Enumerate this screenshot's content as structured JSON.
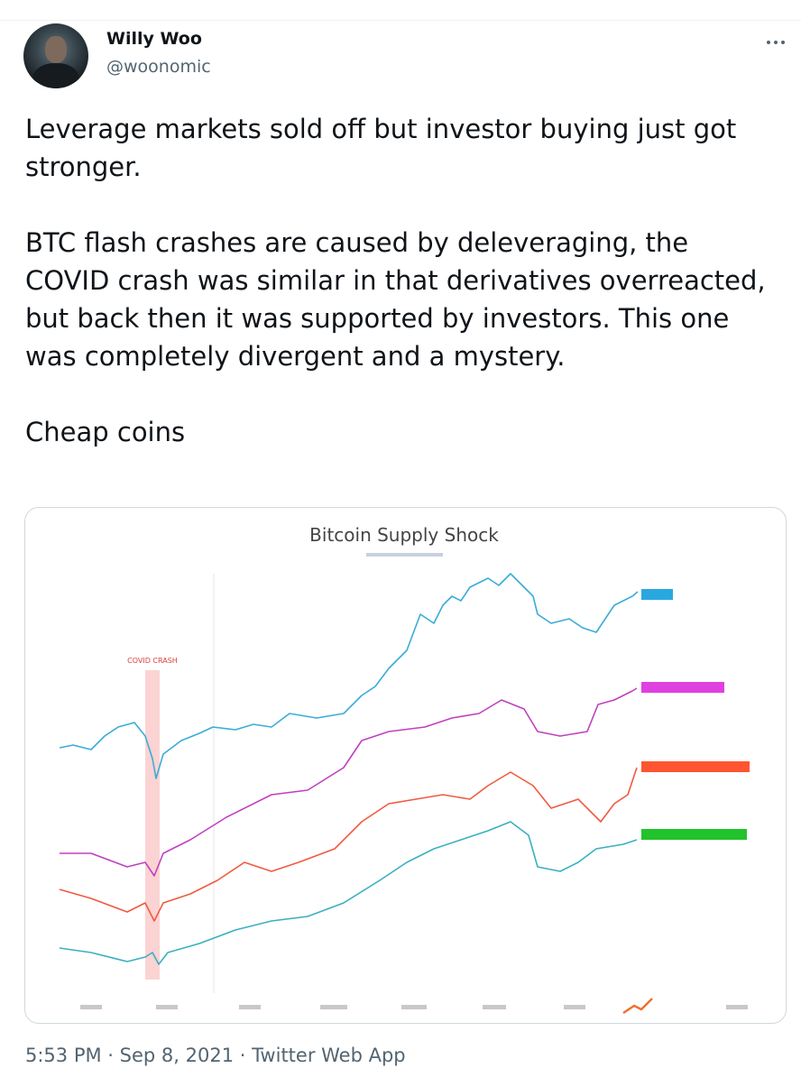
{
  "tweet": {
    "author": {
      "name": "Willy Woo",
      "handle": "@woonomic"
    },
    "text": [
      "Leverage markets sold off but investor buying just got stronger.",
      "BTC flash crashes are caused by deleveraging, the COVID crash was similar in that derivatives overreacted, but back then it was supported by investors. This one was completely divergent and a mystery.",
      "Cheap coins"
    ],
    "image": {
      "title": "Bitcoin Supply Shock",
      "annotation": "COVID CRASH"
    },
    "footer": "5:53 PM · Sep 8, 2021 · Twitter Web App"
  }
}
